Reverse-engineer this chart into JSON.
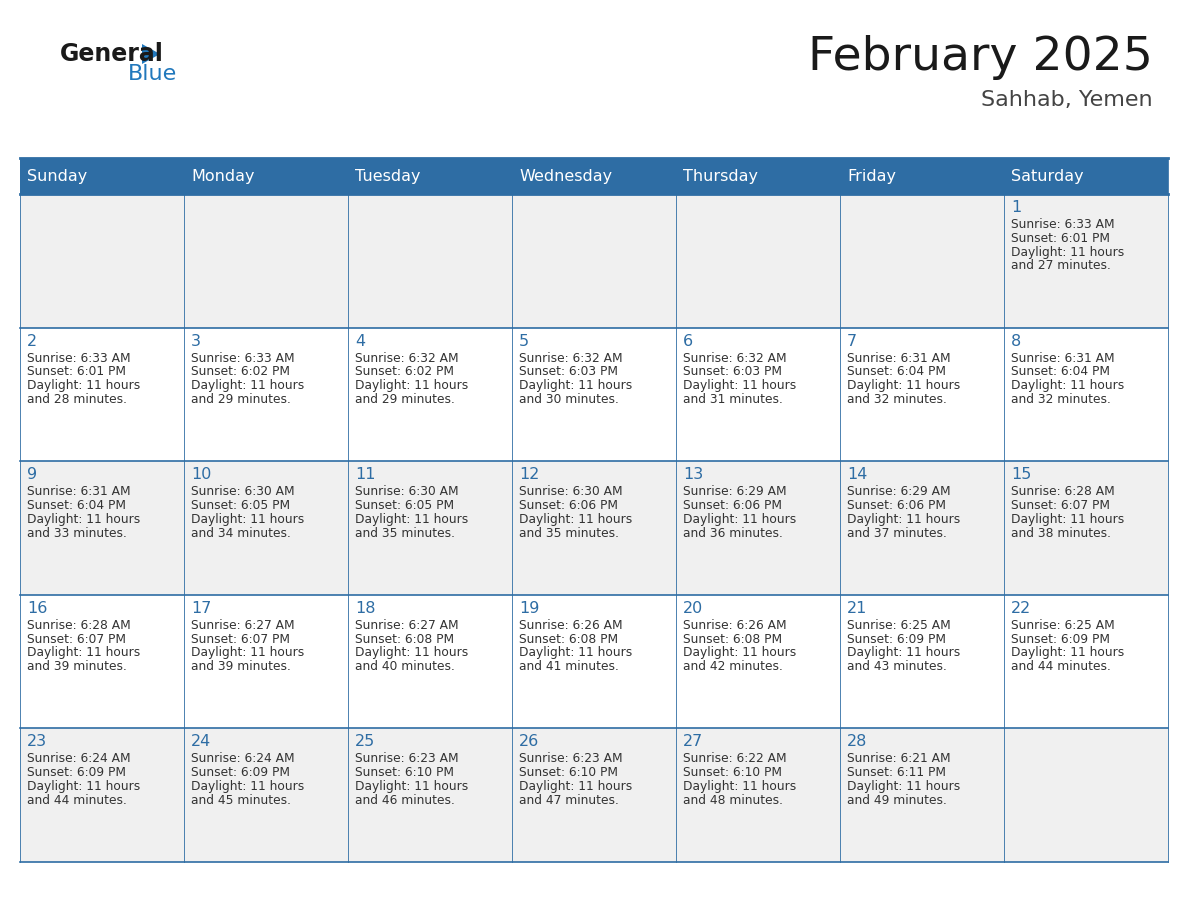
{
  "title": "February 2025",
  "subtitle": "Sahhab, Yemen",
  "days_of_week": [
    "Sunday",
    "Monday",
    "Tuesday",
    "Wednesday",
    "Thursday",
    "Friday",
    "Saturday"
  ],
  "header_bg_color": "#2E6DA4",
  "header_text_color": "#FFFFFF",
  "cell_bg_color": "#F0F0F0",
  "cell_white_color": "#FFFFFF",
  "day_number_color": "#2E6DA4",
  "info_text_color": "#333333",
  "border_color": "#2E6DA4",
  "title_color": "#1A1A1A",
  "subtitle_color": "#444444",
  "logo_general_color": "#1A1A1A",
  "logo_blue_color": "#2178BC",
  "num_rows": 5,
  "num_cols": 7,
  "calendar_data": [
    {
      "day": 1,
      "col": 6,
      "row": 0,
      "sunrise": "6:33 AM",
      "sunset": "6:01 PM",
      "daylight_hours": 11,
      "daylight_minutes": 27
    },
    {
      "day": 2,
      "col": 0,
      "row": 1,
      "sunrise": "6:33 AM",
      "sunset": "6:01 PM",
      "daylight_hours": 11,
      "daylight_minutes": 28
    },
    {
      "day": 3,
      "col": 1,
      "row": 1,
      "sunrise": "6:33 AM",
      "sunset": "6:02 PM",
      "daylight_hours": 11,
      "daylight_minutes": 29
    },
    {
      "day": 4,
      "col": 2,
      "row": 1,
      "sunrise": "6:32 AM",
      "sunset": "6:02 PM",
      "daylight_hours": 11,
      "daylight_minutes": 29
    },
    {
      "day": 5,
      "col": 3,
      "row": 1,
      "sunrise": "6:32 AM",
      "sunset": "6:03 PM",
      "daylight_hours": 11,
      "daylight_minutes": 30
    },
    {
      "day": 6,
      "col": 4,
      "row": 1,
      "sunrise": "6:32 AM",
      "sunset": "6:03 PM",
      "daylight_hours": 11,
      "daylight_minutes": 31
    },
    {
      "day": 7,
      "col": 5,
      "row": 1,
      "sunrise": "6:31 AM",
      "sunset": "6:04 PM",
      "daylight_hours": 11,
      "daylight_minutes": 32
    },
    {
      "day": 8,
      "col": 6,
      "row": 1,
      "sunrise": "6:31 AM",
      "sunset": "6:04 PM",
      "daylight_hours": 11,
      "daylight_minutes": 32
    },
    {
      "day": 9,
      "col": 0,
      "row": 2,
      "sunrise": "6:31 AM",
      "sunset": "6:04 PM",
      "daylight_hours": 11,
      "daylight_minutes": 33
    },
    {
      "day": 10,
      "col": 1,
      "row": 2,
      "sunrise": "6:30 AM",
      "sunset": "6:05 PM",
      "daylight_hours": 11,
      "daylight_minutes": 34
    },
    {
      "day": 11,
      "col": 2,
      "row": 2,
      "sunrise": "6:30 AM",
      "sunset": "6:05 PM",
      "daylight_hours": 11,
      "daylight_minutes": 35
    },
    {
      "day": 12,
      "col": 3,
      "row": 2,
      "sunrise": "6:30 AM",
      "sunset": "6:06 PM",
      "daylight_hours": 11,
      "daylight_minutes": 35
    },
    {
      "day": 13,
      "col": 4,
      "row": 2,
      "sunrise": "6:29 AM",
      "sunset": "6:06 PM",
      "daylight_hours": 11,
      "daylight_minutes": 36
    },
    {
      "day": 14,
      "col": 5,
      "row": 2,
      "sunrise": "6:29 AM",
      "sunset": "6:06 PM",
      "daylight_hours": 11,
      "daylight_minutes": 37
    },
    {
      "day": 15,
      "col": 6,
      "row": 2,
      "sunrise": "6:28 AM",
      "sunset": "6:07 PM",
      "daylight_hours": 11,
      "daylight_minutes": 38
    },
    {
      "day": 16,
      "col": 0,
      "row": 3,
      "sunrise": "6:28 AM",
      "sunset": "6:07 PM",
      "daylight_hours": 11,
      "daylight_minutes": 39
    },
    {
      "day": 17,
      "col": 1,
      "row": 3,
      "sunrise": "6:27 AM",
      "sunset": "6:07 PM",
      "daylight_hours": 11,
      "daylight_minutes": 39
    },
    {
      "day": 18,
      "col": 2,
      "row": 3,
      "sunrise": "6:27 AM",
      "sunset": "6:08 PM",
      "daylight_hours": 11,
      "daylight_minutes": 40
    },
    {
      "day": 19,
      "col": 3,
      "row": 3,
      "sunrise": "6:26 AM",
      "sunset": "6:08 PM",
      "daylight_hours": 11,
      "daylight_minutes": 41
    },
    {
      "day": 20,
      "col": 4,
      "row": 3,
      "sunrise": "6:26 AM",
      "sunset": "6:08 PM",
      "daylight_hours": 11,
      "daylight_minutes": 42
    },
    {
      "day": 21,
      "col": 5,
      "row": 3,
      "sunrise": "6:25 AM",
      "sunset": "6:09 PM",
      "daylight_hours": 11,
      "daylight_minutes": 43
    },
    {
      "day": 22,
      "col": 6,
      "row": 3,
      "sunrise": "6:25 AM",
      "sunset": "6:09 PM",
      "daylight_hours": 11,
      "daylight_minutes": 44
    },
    {
      "day": 23,
      "col": 0,
      "row": 4,
      "sunrise": "6:24 AM",
      "sunset": "6:09 PM",
      "daylight_hours": 11,
      "daylight_minutes": 44
    },
    {
      "day": 24,
      "col": 1,
      "row": 4,
      "sunrise": "6:24 AM",
      "sunset": "6:09 PM",
      "daylight_hours": 11,
      "daylight_minutes": 45
    },
    {
      "day": 25,
      "col": 2,
      "row": 4,
      "sunrise": "6:23 AM",
      "sunset": "6:10 PM",
      "daylight_hours": 11,
      "daylight_minutes": 46
    },
    {
      "day": 26,
      "col": 3,
      "row": 4,
      "sunrise": "6:23 AM",
      "sunset": "6:10 PM",
      "daylight_hours": 11,
      "daylight_minutes": 47
    },
    {
      "day": 27,
      "col": 4,
      "row": 4,
      "sunrise": "6:22 AM",
      "sunset": "6:10 PM",
      "daylight_hours": 11,
      "daylight_minutes": 48
    },
    {
      "day": 28,
      "col": 5,
      "row": 4,
      "sunrise": "6:21 AM",
      "sunset": "6:11 PM",
      "daylight_hours": 11,
      "daylight_minutes": 49
    }
  ]
}
